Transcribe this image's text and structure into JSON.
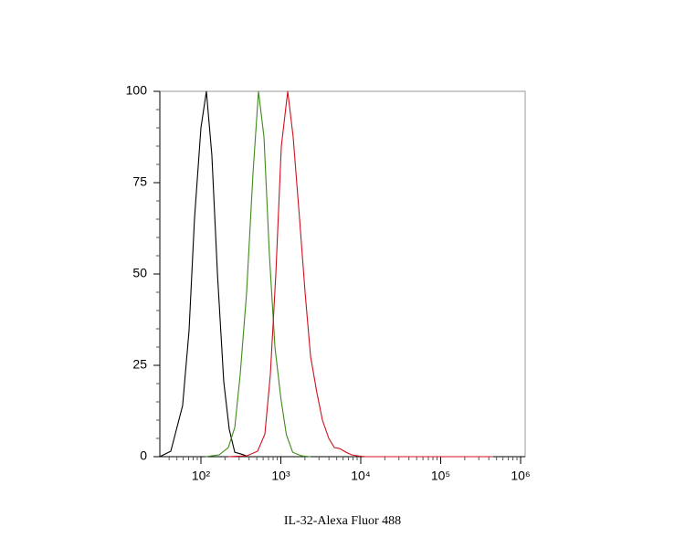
{
  "chart_data": {
    "type": "line",
    "xlabel": "IL-32-Alexa Fluor 488",
    "xscale": "log",
    "xlim": [
      30.6,
      1140000
    ],
    "ylim": [
      0,
      100
    ],
    "xticks": [
      {
        "value": 100,
        "label": "10²"
      },
      {
        "value": 1000,
        "label": "10³"
      },
      {
        "value": 10000,
        "label": "10⁴"
      },
      {
        "value": 100000,
        "label": "10⁵"
      },
      {
        "value": 1000000,
        "label": "10⁶"
      }
    ],
    "yticks": [
      0,
      25,
      50,
      75,
      100
    ],
    "series": [
      {
        "color": "#000000",
        "x": [
          30.6,
          42,
          59,
          71,
          83,
          100,
          117,
          137,
          161,
          193,
          226,
          265,
          310,
          373
        ],
        "values": [
          0,
          1.5,
          14,
          34.5,
          65,
          90,
          100,
          82.5,
          50,
          20.5,
          7.5,
          1.2,
          0.8,
          0.2
        ]
      },
      {
        "color": "#3f8a1c",
        "x": [
          114,
          169,
          220,
          265,
          310,
          373,
          448,
          525,
          615,
          720,
          843,
          1000,
          1172,
          1408,
          1834,
          2352
        ],
        "values": [
          0,
          0.5,
          2.5,
          8,
          22.5,
          45,
          77.5,
          100,
          87.5,
          55,
          30,
          16,
          6,
          1.2,
          0.2,
          0
        ]
      },
      {
        "color": "#d0101e",
        "x": [
          220,
          373,
          512,
          631,
          739,
          865,
          1014,
          1219,
          1426,
          1716,
          2009,
          2352,
          2825,
          3311,
          3981,
          4668,
          5464,
          6564,
          7690,
          9249,
          11400,
          25100,
          454000
        ],
        "values": [
          0,
          0.2,
          1.5,
          6.2,
          22.5,
          50,
          85,
          100,
          87.5,
          65,
          45,
          27.5,
          17.5,
          10,
          5,
          2.5,
          2.2,
          1.2,
          0.5,
          0.2,
          0,
          0,
          0
        ]
      }
    ]
  }
}
